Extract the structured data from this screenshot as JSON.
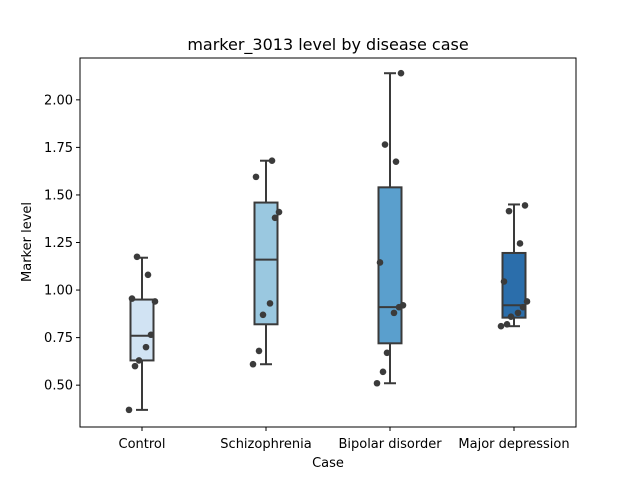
{
  "chart_data": {
    "type": "box",
    "title": "marker_3013 level by disease case",
    "xlabel": "Case",
    "ylabel": "Marker level",
    "ylim": [
      0.28,
      2.22
    ],
    "yticks": [
      0.5,
      0.75,
      1.0,
      1.25,
      1.5,
      1.75,
      2.0
    ],
    "ytick_labels": [
      "0.50",
      "0.75",
      "1.00",
      "1.25",
      "1.50",
      "1.75",
      "2.00"
    ],
    "grid": false,
    "categories": [
      "Control",
      "Schizophrenia",
      "Bipolar disorder",
      "Major depression"
    ],
    "box_colors": [
      "#d1e3f3",
      "#9ac8e0",
      "#5a9fcd",
      "#2b6eab"
    ],
    "edge_color": "#3a3a3a",
    "boxes": [
      {
        "whislo": 0.37,
        "q1": 0.63,
        "med": 0.76,
        "q3": 0.95,
        "whishi": 1.17
      },
      {
        "whislo": 0.61,
        "q1": 0.82,
        "med": 1.16,
        "q3": 1.46,
        "whishi": 1.68
      },
      {
        "whislo": 0.51,
        "q1": 0.72,
        "med": 0.91,
        "q3": 1.54,
        "whishi": 2.14
      },
      {
        "whislo": 0.81,
        "q1": 0.855,
        "med": 0.92,
        "q3": 1.195,
        "whishi": 1.45
      }
    ],
    "points": [
      [
        0.37,
        0.6,
        0.63,
        0.7,
        0.765,
        0.94,
        0.955,
        1.08,
        1.175
      ],
      [
        0.61,
        0.68,
        0.87,
        0.93,
        1.38,
        1.41,
        1.595,
        1.68
      ],
      [
        0.51,
        0.57,
        0.67,
        0.88,
        0.91,
        0.92,
        1.145,
        1.675,
        1.765,
        2.14
      ],
      [
        0.81,
        0.82,
        0.86,
        0.88,
        0.91,
        0.94,
        1.045,
        1.245,
        1.415,
        1.445
      ]
    ]
  }
}
